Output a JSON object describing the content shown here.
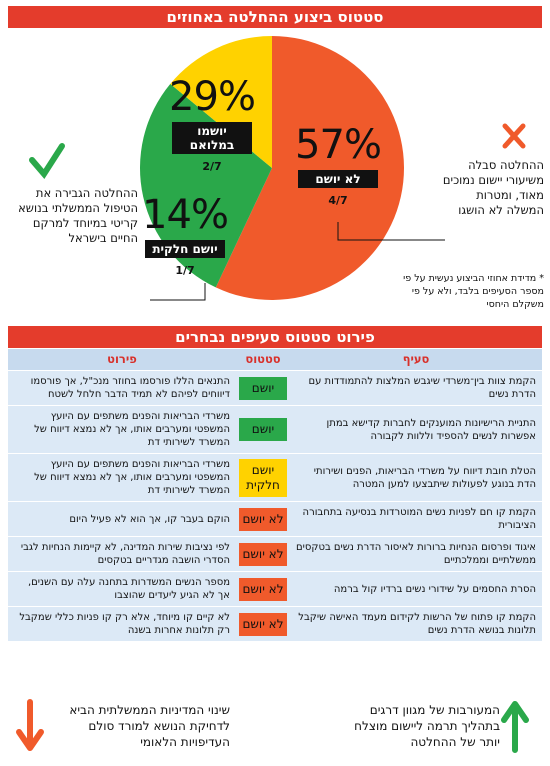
{
  "chart_data": {
    "type": "pie",
    "title": "סטטוס ביצוע ההחלטה באחוזים",
    "categories": [
      "לא יושם",
      "יושמו במלואם",
      "יושם חלקית"
    ],
    "values": [
      57,
      29,
      14
    ],
    "value_labels": [
      "57%",
      "29%",
      "14%"
    ],
    "fraction_labels": [
      "4/7",
      "2/7",
      "1/7"
    ],
    "colors": [
      "#f05a2b",
      "#2aa84a",
      "#ffd200"
    ]
  },
  "left_note": "ההחלטה הגבירה את הטיפול הממשלתי בנושא קריטי במיוחד למרקם החיים בישראל",
  "right_note": "ההחלטה סבלה משיעורי יישום נמוכים מאוד, ומטרות המשלה לא הושגו",
  "footnote": "* מדידת אחוזי הביצוע נעשית על פי מספר הסעיפים בלבד, ולא על פי משקלם היחסי",
  "table": {
    "title": "פירוט סטטוס סעיפים נבחרים",
    "headers": [
      "סעיף",
      "סטטוס",
      "פירוט"
    ],
    "rows": [
      {
        "section": "הקמת צוות בין־משרדי שיגבש המלצות להתמודדות עם הדרת נשים",
        "status": "יושם",
        "color": "#2aa84a",
        "detail": "התנאים הללו פורסמו בחוזר מנכ\"ל, אך פורסמו דיווחים לפיהם לא תמיד הדבר חלחל לשטח"
      },
      {
        "section": "התניית הרישיונות המוענקים לחברות קדישא במתן אפשרות לנשים להספיד וללוות לקבורה",
        "status": "יושם",
        "color": "#2aa84a",
        "detail": "משרדי הבריאות והפנים משתפים עם היועץ המשפטי ומערבים אותו, אך לא נמצא דיווח של המשרד לשירותי דת"
      },
      {
        "section": "הטלת חובת דיווח על משרדי הבריאות, הפנים ושירותי הדת בנוגע לפעולות שיתבצעו למען המטרה",
        "status": "יושם חלקית",
        "color": "#ffd200",
        "detail": "משרדי הבריאות והפנים משתפים עם היועץ המשפטי ומערבים אותו, אך לא נמצא דיווח של המשרד לשירותי דת"
      },
      {
        "section": "הקמת קו חם לפניות נשים המוטרדות בנסיעה בתחבורה הציבורית",
        "status": "לא יושם",
        "color": "#f05a2b",
        "detail": "הוקם בעבר קו, אך הוא לא פעיל היום"
      },
      {
        "section": "איגוד ופרסום הנחיות ברורות לאיסור הדרת נשים בטקסים ממשלתיים וממלכתיים",
        "status": "לא יושם",
        "color": "#f05a2b",
        "detail": "לפי נציבות שירות המדינה, לא קיימות הנחיות לגבי הסדרי הושבה מגדריים בטקסים"
      },
      {
        "section": "הסרת החסמים על שידורי נשים ברדיו קול ברמה",
        "status": "לא יושם",
        "color": "#f05a2b",
        "detail": "מספר הנשים המשדרות בתחנה עלה עם השנים, אך לא הגיע ליעדים שהוצבו"
      },
      {
        "section": "הקמת קו פתוח של הרשות לקידום מעמד האישה שיקבל תלונות בנושא הדרת נשים",
        "status": "לא יושם",
        "color": "#f05a2b",
        "detail": "לא קיים קו מיוחד, אלא רק קו פניות כללי שמקבל רק תלונות אחרות בשנה"
      }
    ]
  },
  "footer": {
    "right": "המעורבות של מגוון דרגים בתהליך תרמה ליישום מוצלח יותר של ההחלטה",
    "left": "שינוי המדיניות הממשלתית הביא לדחיקת הנושא למורד סולם העדיפויות הלאומי"
  }
}
